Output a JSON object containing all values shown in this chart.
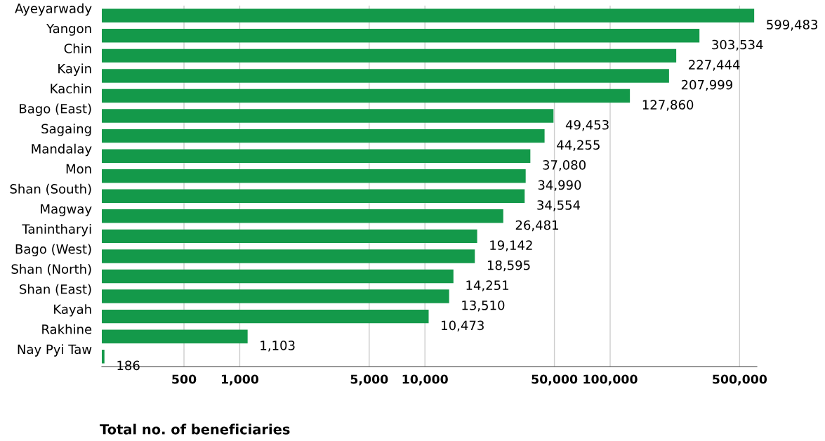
{
  "chart_data": {
    "type": "bar",
    "orientation": "horizontal",
    "log": "x",
    "xlabel": "Total no. of beneficiaries",
    "categories": [
      "Ayeyarwady",
      "Yangon",
      "Chin",
      "Kayin",
      "Kachin",
      "Bago (East)",
      "Sagaing",
      "Mandalay",
      "Mon",
      "Shan (South)",
      "Magway",
      "Tanintharyi",
      "Bago (West)",
      "Shan (North)",
      "Shan (East)",
      "Kayah",
      "Rakhine",
      "Nay Pyi Taw"
    ],
    "values": [
      599483,
      303534,
      227444,
      207999,
      127860,
      49453,
      44255,
      37080,
      34990,
      34554,
      26481,
      19142,
      18595,
      14251,
      13510,
      10473,
      1103,
      186
    ],
    "color": "#14994a",
    "data_labels": true,
    "value_labels": [
      "599,483",
      "303,534",
      "227,444",
      "207,999",
      "127,860",
      "49,453",
      "44,255",
      "37,080",
      "34,990",
      "34,554",
      "26,481",
      "19,142",
      "18,595",
      "14,251",
      "13,510",
      "10,473",
      "1,103",
      "186"
    ],
    "xlim": [
      180,
      620000
    ],
    "xticks": [
      {
        "value": 500,
        "label": "500"
      },
      {
        "value": 1000,
        "label": "1,000"
      },
      {
        "value": 5000,
        "label": "5,000"
      },
      {
        "value": 10000,
        "label": "10,000"
      },
      {
        "value": 50000,
        "label": "50,000"
      },
      {
        "value": 100000,
        "label": "100,000"
      },
      {
        "value": 500000,
        "label": "500,000"
      }
    ],
    "grid": "x"
  }
}
